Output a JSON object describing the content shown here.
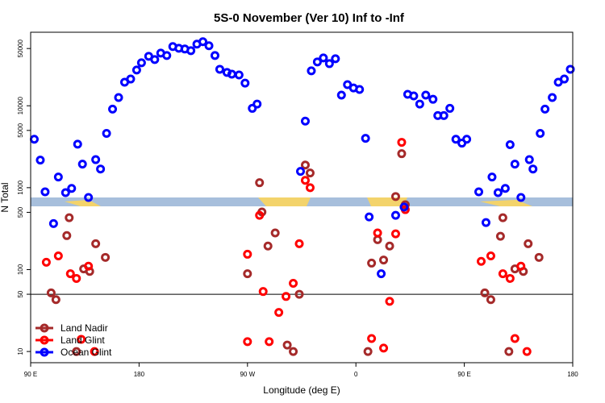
{
  "chart_data": {
    "type": "scatter",
    "title": "5S-0 November (Ver 10)   Inf to -Inf",
    "x_label": "Longitude (deg E)",
    "y_label": "N Total",
    "log_y": true,
    "legend": "lower left",
    "reference_line": 50,
    "xlim": [
      90,
      540
    ],
    "ylim": [
      7.3,
      79000
    ],
    "xticks": [
      {
        "value": 90,
        "label": "90 E"
      },
      180,
      {
        "value": 270,
        "label": "90 W"
      },
      {
        "value": 360,
        "label": "0"
      },
      {
        "value": 450,
        "label": "90 E"
      },
      {
        "value": 540,
        "label": "180"
      }
    ],
    "yticks": [
      10,
      50,
      100,
      500,
      1000,
      5000,
      10000,
      50000
    ],
    "series": [
      {
        "name": "Land Nadir",
        "color": "#a52a2a",
        "x": [
          107,
          111,
          120,
          122,
          128,
          134,
          139,
          144,
          152,
          270,
          280,
          282,
          287,
          293,
          303,
          308,
          313,
          318,
          322,
          370,
          373,
          378,
          383,
          388,
          393,
          398,
          401,
          467,
          472,
          480,
          482,
          487,
          492,
          499,
          503,
          512
        ],
        "values": [
          52,
          43,
          260,
          430,
          10,
          102,
          95,
          207,
          141,
          89,
          1150,
          505,
          194,
          280,
          12,
          10,
          50,
          1890,
          1510,
          10,
          120,
          232,
          131,
          194,
          780,
          2600,
          620,
          52,
          43,
          255,
          430,
          10,
          102,
          95,
          207,
          141
        ]
      },
      {
        "name": "Land Glint",
        "color": "#ff0000",
        "x": [
          103,
          113,
          123,
          128,
          132,
          138,
          143,
          270,
          270,
          280,
          283,
          288,
          296,
          302,
          308,
          313,
          318,
          322,
          373,
          378,
          383,
          388,
          393,
          398,
          401,
          464,
          472,
          482,
          488,
          492,
          497,
          502
        ],
        "values": [
          123,
          147,
          89,
          78,
          14.1,
          110,
          10,
          154,
          13.2,
          460,
          54,
          13.2,
          30,
          47,
          68,
          207,
          1230,
          1000,
          14.4,
          280,
          11,
          41,
          273,
          3580,
          540,
          126,
          147,
          89,
          78,
          14.4,
          110,
          10
        ]
      },
      {
        "name": "Ocean Glint",
        "color": "#0000ff",
        "x": [
          93,
          98,
          102,
          109,
          113,
          119,
          124,
          129,
          133,
          138,
          144,
          148,
          153,
          158,
          163,
          168,
          173,
          178,
          182,
          188,
          193,
          198,
          203,
          208,
          213,
          218,
          223,
          228,
          233,
          238,
          243,
          247,
          253,
          257,
          263,
          268,
          274,
          278,
          314,
          318,
          323,
          328,
          333,
          338,
          343,
          348,
          353,
          358,
          363,
          368,
          371,
          381,
          393,
          400,
          403,
          408,
          413,
          418,
          424,
          428,
          433,
          438,
          443,
          448,
          452,
          462,
          468,
          473,
          478,
          484,
          488,
          492,
          497,
          504,
          507,
          513,
          517,
          523,
          528,
          533,
          538
        ],
        "values": [
          3900,
          2170,
          890,
          365,
          1350,
          870,
          980,
          3400,
          1940,
          760,
          2200,
          1690,
          4600,
          9100,
          12600,
          19400,
          21200,
          27300,
          33500,
          40200,
          36700,
          44000,
          41100,
          52800,
          50400,
          49300,
          47100,
          56500,
          60500,
          54000,
          41100,
          27900,
          25500,
          24300,
          23800,
          18900,
          9300,
          10500,
          1580,
          6500,
          26700,
          34300,
          38400,
          32700,
          37500,
          13500,
          18100,
          16500,
          15800,
          4000,
          440,
          89,
          460,
          580,
          13800,
          13200,
          10500,
          13500,
          12000,
          7600,
          7600,
          9300,
          3900,
          3500,
          3900,
          890,
          375,
          1350,
          870,
          980,
          3350,
          1940,
          760,
          2200,
          1690,
          4600,
          9100,
          12600,
          19400,
          21200,
          27900
        ]
      }
    ]
  }
}
